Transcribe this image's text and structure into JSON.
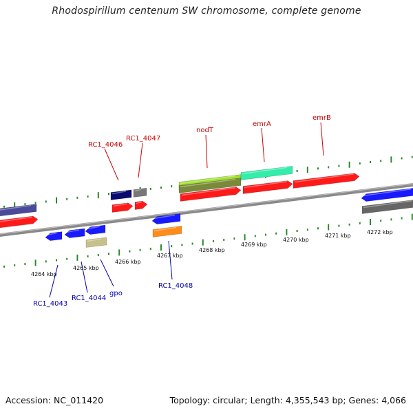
{
  "title": "Rhodospirillum centenum SW chromosome, complete genome",
  "accession": "Accession: NC_011420",
  "topology": "Topology: circular; Length: 4,355,543 bp; Genes: 4,066",
  "colors": {
    "forward_label": "#cc0000",
    "reverse_label": "#0000aa",
    "backbone": "#8a8a8a",
    "tick": "#2a8a2a"
  },
  "kbp_labels": [
    "4264 kbp",
    "4265 kbp",
    "4266 kbp",
    "4267 kbp",
    "4268 kbp",
    "4269 kbp",
    "4270 kbp",
    "4271 kbp",
    "4272 kbp"
  ],
  "forward_gene_labels": [
    "RC1_4046",
    "RC1_4047",
    "nodT",
    "emrA",
    "emrB"
  ],
  "reverse_gene_labels": [
    "RC1_4043",
    "RC1_4044",
    "gpo",
    "RC1_4048"
  ]
}
